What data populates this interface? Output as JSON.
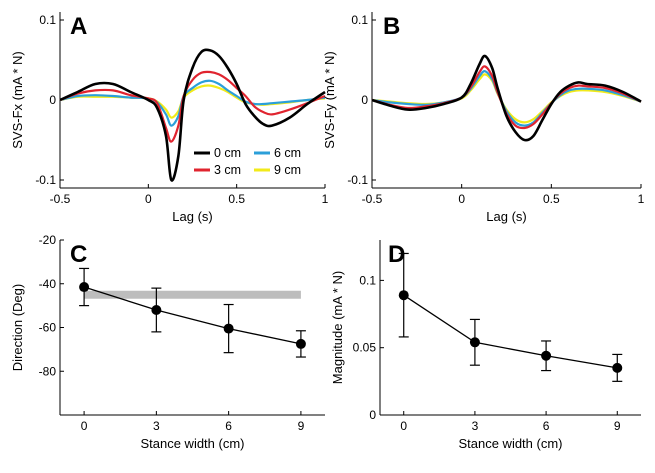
{
  "chart_data": [
    {
      "panel": "A",
      "type": "line",
      "xlabel": "Lag (s)",
      "ylabel": "SVS-Fx (mA * N)",
      "xlim": [
        -0.5,
        1
      ],
      "ylim": [
        -0.11,
        0.11
      ],
      "xticks": [
        "-0.5",
        "0",
        "0.5",
        "1"
      ],
      "yticks": [
        "-0.1",
        "0",
        "0.1"
      ],
      "legend": {
        "placement": "lower-right",
        "entries": [
          "0 cm",
          "6 cm",
          "3 cm",
          "9 cm"
        ]
      },
      "x": [
        -0.5,
        -0.4,
        -0.3,
        -0.2,
        -0.1,
        0,
        0.05,
        0.1,
        0.13,
        0.17,
        0.2,
        0.25,
        0.3,
        0.35,
        0.4,
        0.45,
        0.5,
        0.55,
        0.6,
        0.65,
        0.7,
        0.8,
        0.9,
        1.0
      ],
      "series": [
        {
          "name": "0 cm",
          "color": "#000000",
          "width": 2.6,
          "values": [
            0,
            0.01,
            0.02,
            0.02,
            0.01,
            0,
            -0.01,
            -0.045,
            -0.1,
            -0.07,
            0,
            0.04,
            0.06,
            0.062,
            0.055,
            0.04,
            0.02,
            -0.005,
            -0.02,
            -0.03,
            -0.032,
            -0.022,
            -0.005,
            0.01
          ]
        },
        {
          "name": "3 cm",
          "color": "#e0242f",
          "width": 2.2,
          "values": [
            0,
            0.008,
            0.012,
            0.012,
            0.006,
            0.002,
            -0.004,
            -0.035,
            -0.052,
            -0.032,
            0.005,
            0.025,
            0.034,
            0.035,
            0.032,
            0.025,
            0.015,
            0.005,
            -0.008,
            -0.015,
            -0.018,
            -0.012,
            -0.004,
            0.005
          ]
        },
        {
          "name": "6 cm",
          "color": "#2b9fd9",
          "width": 2.2,
          "values": [
            0,
            0.005,
            0.006,
            0.005,
            0.003,
            0.002,
            -0.003,
            -0.018,
            -0.032,
            -0.02,
            0.005,
            0.015,
            0.022,
            0.024,
            0.02,
            0.012,
            0.005,
            -0.002,
            -0.005,
            -0.005,
            -0.004,
            -0.002,
            0,
            0.003
          ]
        },
        {
          "name": "9 cm",
          "color": "#f2ea1a",
          "width": 2.2,
          "values": [
            0,
            0.004,
            0.004,
            0.004,
            0.003,
            0.002,
            -0.002,
            -0.012,
            -0.022,
            -0.014,
            0.003,
            0.012,
            0.017,
            0.018,
            0.015,
            0.01,
            0.003,
            -0.003,
            -0.005,
            -0.006,
            -0.005,
            -0.003,
            0,
            0.002
          ]
        }
      ]
    },
    {
      "panel": "B",
      "type": "line",
      "xlabel": "Lag (s)",
      "ylabel": "SVS-Fy (mA * N)",
      "xlim": [
        -0.5,
        1
      ],
      "ylim": [
        -0.11,
        0.11
      ],
      "xticks": [
        "-0.5",
        "0",
        "0.5",
        "1"
      ],
      "yticks": [
        "-0.1",
        "0",
        "0.1"
      ],
      "x": [
        -0.5,
        -0.4,
        -0.3,
        -0.2,
        -0.1,
        0,
        0.05,
        0.1,
        0.13,
        0.17,
        0.2,
        0.25,
        0.3,
        0.35,
        0.4,
        0.45,
        0.5,
        0.55,
        0.6,
        0.65,
        0.7,
        0.8,
        0.9,
        1.0
      ],
      "series": [
        {
          "name": "0 cm",
          "color": "#000000",
          "width": 2.6,
          "values": [
            0,
            -0.007,
            -0.012,
            -0.01,
            -0.005,
            0.003,
            0.02,
            0.045,
            0.055,
            0.04,
            0.015,
            -0.02,
            -0.04,
            -0.05,
            -0.045,
            -0.025,
            -0.005,
            0.01,
            0.018,
            0.022,
            0.02,
            0.018,
            0.01,
            -0.002
          ]
        },
        {
          "name": "3 cm",
          "color": "#e0242f",
          "width": 2.2,
          "values": [
            0,
            -0.006,
            -0.01,
            -0.008,
            -0.004,
            0.003,
            0.016,
            0.035,
            0.042,
            0.03,
            0.01,
            -0.017,
            -0.032,
            -0.035,
            -0.03,
            -0.018,
            -0.004,
            0.008,
            0.015,
            0.018,
            0.017,
            0.015,
            0.008,
            -0.002
          ]
        },
        {
          "name": "6 cm",
          "color": "#2b9fd9",
          "width": 2.2,
          "values": [
            0,
            -0.003,
            -0.005,
            -0.006,
            -0.003,
            0.003,
            0.014,
            0.03,
            0.036,
            0.026,
            0.009,
            -0.014,
            -0.028,
            -0.032,
            -0.028,
            -0.016,
            -0.004,
            0.006,
            0.012,
            0.014,
            0.014,
            0.012,
            0.006,
            -0.002
          ]
        },
        {
          "name": "9 cm",
          "color": "#f2ea1a",
          "width": 2.2,
          "values": [
            0,
            -0.002,
            -0.004,
            -0.005,
            -0.003,
            0.002,
            0.012,
            0.026,
            0.032,
            0.024,
            0.008,
            -0.012,
            -0.024,
            -0.028,
            -0.024,
            -0.014,
            -0.003,
            0.005,
            0.01,
            0.012,
            0.012,
            0.01,
            0.005,
            -0.002
          ]
        }
      ]
    },
    {
      "panel": "C",
      "type": "line",
      "xlabel": "Stance width (cm)",
      "ylabel": "Direction (Deg)",
      "xlim": [
        -1,
        10
      ],
      "ylim": [
        -100,
        -20
      ],
      "xticks": [
        "0",
        "3",
        "6",
        "9"
      ],
      "yticks": [
        "-20",
        "-40",
        "-60",
        "-80"
      ],
      "x": [
        0,
        3,
        6,
        9
      ],
      "values": [
        -41.5,
        -52,
        -60.5,
        -67.5
      ],
      "error": [
        8.5,
        10,
        11,
        6
      ],
      "reference_band": {
        "x": [
          0,
          9
        ],
        "value": -45
      }
    },
    {
      "panel": "D",
      "type": "line",
      "xlabel": "Stance width (cm)",
      "ylabel": "Magnitude (mA * N)",
      "xlim": [
        -1,
        10
      ],
      "ylim": [
        0,
        0.13
      ],
      "xticks": [
        "0",
        "3",
        "6",
        "9"
      ],
      "yticks": [
        "0",
        "0.05",
        "0.1"
      ],
      "x": [
        0,
        3,
        6,
        9
      ],
      "values": [
        0.089,
        0.054,
        0.044,
        0.035
      ],
      "error": [
        0.031,
        0.017,
        0.011,
        0.01
      ]
    }
  ]
}
